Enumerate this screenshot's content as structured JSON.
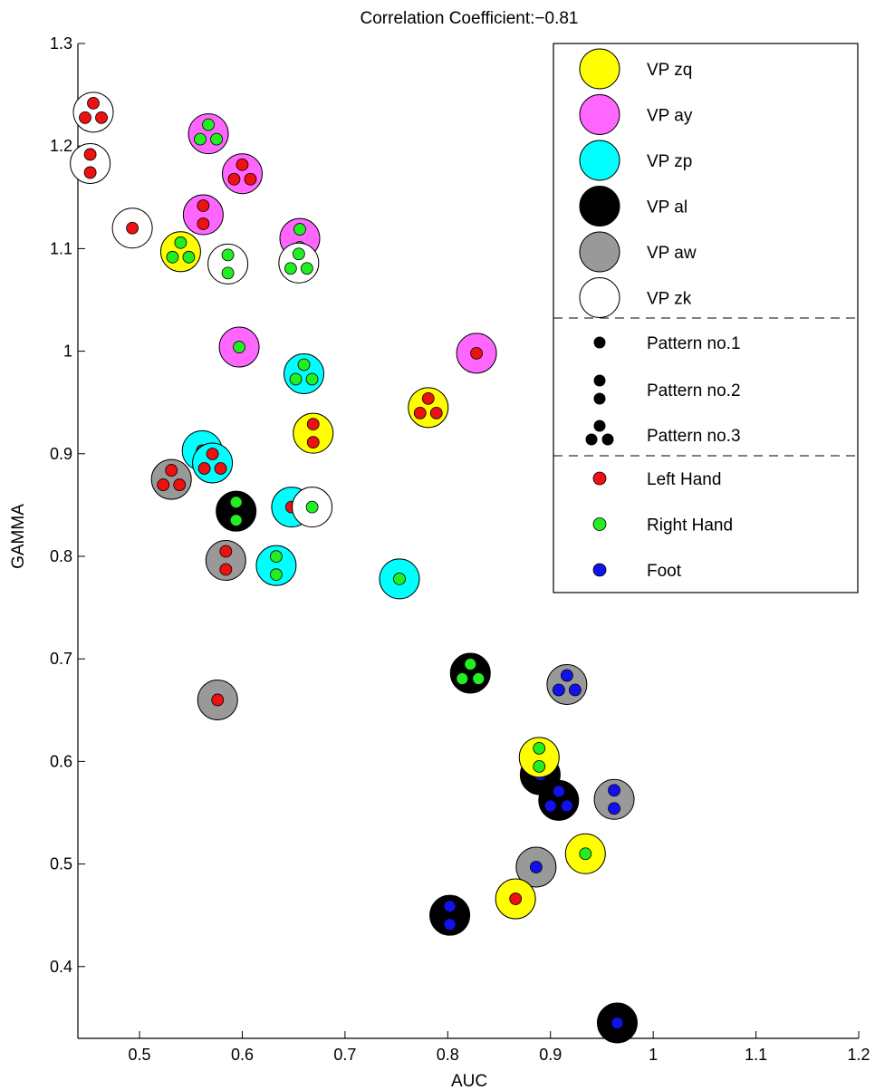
{
  "chart_data": {
    "type": "scatter",
    "title": "Correlation Coefficient:−0.81",
    "xlabel": "AUC",
    "ylabel": "GAMMA",
    "xlim": [
      0.44,
      1.2
    ],
    "ylim": [
      0.33,
      1.3
    ],
    "xticks": [
      0.5,
      0.6,
      0.7,
      0.8,
      0.9,
      1,
      1.1,
      1.2
    ],
    "xtick_labels": [
      "0.5",
      "0.6",
      "0.7",
      "0.8",
      "0.9",
      "1",
      "1.1",
      "1.2"
    ],
    "yticks": [
      0.4,
      0.5,
      0.6,
      0.7,
      0.8,
      0.9,
      1,
      1.1,
      1.2,
      1.3
    ],
    "ytick_labels": [
      "0.4",
      "0.5",
      "0.6",
      "0.7",
      "0.8",
      "0.9",
      "1",
      "1.1",
      "1.2",
      "1.3"
    ],
    "grid": false,
    "legend_position": "top-right",
    "subjects": [
      {
        "name": "VP zq",
        "color": "#ffff00"
      },
      {
        "name": "VP ay",
        "color": "#ff66ff"
      },
      {
        "name": "VP zp",
        "color": "#00ffff"
      },
      {
        "name": "VP al",
        "color": "#000000"
      },
      {
        "name": "VP aw",
        "color": "#999999"
      },
      {
        "name": "VP zk",
        "color": "#ffffff"
      }
    ],
    "patterns": [
      {
        "name": "Pattern no.1",
        "dots": 1
      },
      {
        "name": "Pattern no.2",
        "dots": 2
      },
      {
        "name": "Pattern no.3",
        "dots": 3
      }
    ],
    "limbs": [
      {
        "name": "Left Hand",
        "color": "#ee1111"
      },
      {
        "name": "Right Hand",
        "color": "#22ee22"
      },
      {
        "name": "Foot",
        "color": "#1111ee"
      }
    ],
    "points": [
      {
        "subject": "VP zk",
        "x": 0.455,
        "y": 1.233,
        "pattern": 3,
        "limb": "Left Hand"
      },
      {
        "subject": "VP zk",
        "x": 0.452,
        "y": 1.183,
        "pattern": 2,
        "limb": "Left Hand"
      },
      {
        "subject": "VP zk",
        "x": 0.493,
        "y": 1.12,
        "pattern": 1,
        "limb": "Left Hand"
      },
      {
        "subject": "VP ay",
        "x": 0.567,
        "y": 1.212,
        "pattern": 3,
        "limb": "Right Hand"
      },
      {
        "subject": "VP ay",
        "x": 0.6,
        "y": 1.173,
        "pattern": 3,
        "limb": "Left Hand"
      },
      {
        "subject": "VP ay",
        "x": 0.562,
        "y": 1.133,
        "pattern": 2,
        "limb": "Left Hand"
      },
      {
        "subject": "VP ay",
        "x": 0.656,
        "y": 1.11,
        "pattern": 2,
        "limb": "Right Hand"
      },
      {
        "subject": "VP zq",
        "x": 0.54,
        "y": 1.097,
        "pattern": 3,
        "limb": "Right Hand"
      },
      {
        "subject": "VP zk",
        "x": 0.586,
        "y": 1.085,
        "pattern": 2,
        "limb": "Right Hand"
      },
      {
        "subject": "VP zk",
        "x": 0.655,
        "y": 1.086,
        "pattern": 3,
        "limb": "Right Hand"
      },
      {
        "subject": "VP ay",
        "x": 0.597,
        "y": 1.004,
        "pattern": 1,
        "limb": "Right Hand"
      },
      {
        "subject": "VP ay",
        "x": 0.828,
        "y": 0.998,
        "pattern": 1,
        "limb": "Left Hand"
      },
      {
        "subject": "VP zp",
        "x": 0.66,
        "y": 0.978,
        "pattern": 3,
        "limb": "Right Hand"
      },
      {
        "subject": "VP zq",
        "x": 0.781,
        "y": 0.945,
        "pattern": 3,
        "limb": "Left Hand"
      },
      {
        "subject": "VP zq",
        "x": 0.669,
        "y": 0.92,
        "pattern": 2,
        "limb": "Left Hand"
      },
      {
        "subject": "VP zp",
        "x": 0.561,
        "y": 0.903,
        "pattern": 1,
        "limb": "Left Hand"
      },
      {
        "subject": "VP zp",
        "x": 0.571,
        "y": 0.891,
        "pattern": 3,
        "limb": "Left Hand"
      },
      {
        "subject": "VP aw",
        "x": 0.531,
        "y": 0.875,
        "pattern": 3,
        "limb": "Left Hand"
      },
      {
        "subject": "VP al",
        "x": 0.594,
        "y": 0.844,
        "pattern": 2,
        "limb": "Right Hand"
      },
      {
        "subject": "VP zp",
        "x": 0.648,
        "y": 0.848,
        "pattern": 1,
        "limb": "Left Hand"
      },
      {
        "subject": "VP zk",
        "x": 0.668,
        "y": 0.848,
        "pattern": 1,
        "limb": "Right Hand"
      },
      {
        "subject": "VP aw",
        "x": 0.584,
        "y": 0.796,
        "pattern": 2,
        "limb": "Left Hand"
      },
      {
        "subject": "VP zp",
        "x": 0.633,
        "y": 0.791,
        "pattern": 2,
        "limb": "Right Hand"
      },
      {
        "subject": "VP zp",
        "x": 0.753,
        "y": 0.778,
        "pattern": 1,
        "limb": "Right Hand"
      },
      {
        "subject": "VP al",
        "x": 0.822,
        "y": 0.686,
        "pattern": 3,
        "limb": "Right Hand"
      },
      {
        "subject": "VP aw",
        "x": 0.916,
        "y": 0.675,
        "pattern": 3,
        "limb": "Foot"
      },
      {
        "subject": "VP aw",
        "x": 0.576,
        "y": 0.66,
        "pattern": 1,
        "limb": "Left Hand"
      },
      {
        "subject": "VP al",
        "x": 0.89,
        "y": 0.587,
        "pattern": 1,
        "limb": "Foot"
      },
      {
        "subject": "VP zq",
        "x": 0.889,
        "y": 0.604,
        "pattern": 2,
        "limb": "Right Hand"
      },
      {
        "subject": "VP al",
        "x": 0.908,
        "y": 0.562,
        "pattern": 3,
        "limb": "Foot"
      },
      {
        "subject": "VP aw",
        "x": 0.962,
        "y": 0.563,
        "pattern": 2,
        "limb": "Foot"
      },
      {
        "subject": "VP zq",
        "x": 0.934,
        "y": 0.51,
        "pattern": 1,
        "limb": "Right Hand"
      },
      {
        "subject": "VP aw",
        "x": 0.886,
        "y": 0.497,
        "pattern": 1,
        "limb": "Foot"
      },
      {
        "subject": "VP zq",
        "x": 0.866,
        "y": 0.466,
        "pattern": 1,
        "limb": "Left Hand"
      },
      {
        "subject": "VP al",
        "x": 0.802,
        "y": 0.45,
        "pattern": 2,
        "limb": "Foot"
      },
      {
        "subject": "VP al",
        "x": 0.965,
        "y": 0.345,
        "pattern": 1,
        "limb": "Foot"
      }
    ]
  }
}
